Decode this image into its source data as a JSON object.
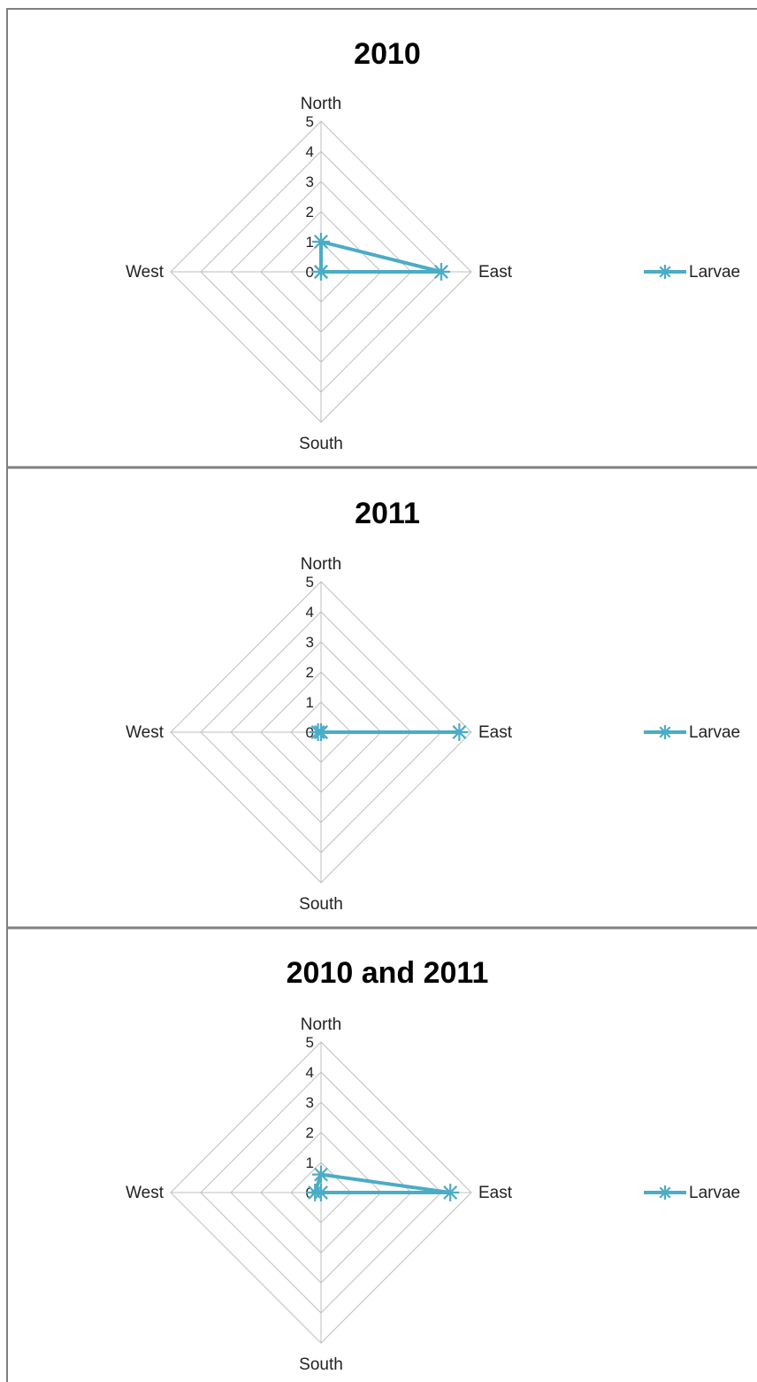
{
  "chart_data": [
    {
      "type": "radar",
      "title": "2010",
      "categories": [
        "North",
        "East",
        "South",
        "West"
      ],
      "rlim": [
        0,
        5
      ],
      "ticks": [
        "0",
        "1",
        "2",
        "3",
        "4",
        "5"
      ],
      "series": [
        {
          "name": "Larvae",
          "values": [
            1,
            4,
            0,
            0
          ]
        }
      ],
      "legend_position": "right"
    },
    {
      "type": "radar",
      "title": "2011",
      "categories": [
        "North",
        "East",
        "South",
        "West"
      ],
      "rlim": [
        0,
        5
      ],
      "ticks": [
        "0",
        "1",
        "2",
        "3",
        "4",
        "5"
      ],
      "series": [
        {
          "name": "Larvae",
          "values": [
            0,
            4.6,
            0,
            0.1
          ]
        }
      ],
      "legend_position": "right"
    },
    {
      "type": "radar",
      "title": "2010 and 2011",
      "categories": [
        "North",
        "East",
        "South",
        "West"
      ],
      "rlim": [
        0,
        5
      ],
      "ticks": [
        "0",
        "1",
        "2",
        "3",
        "4",
        "5"
      ],
      "series": [
        {
          "name": "Larvae",
          "values": [
            0.6,
            4.3,
            0,
            0.2
          ]
        }
      ],
      "legend_position": "right"
    }
  ],
  "colors": {
    "series": "#4bacc6",
    "grid": "#bfbfbf",
    "border": "#808080"
  }
}
